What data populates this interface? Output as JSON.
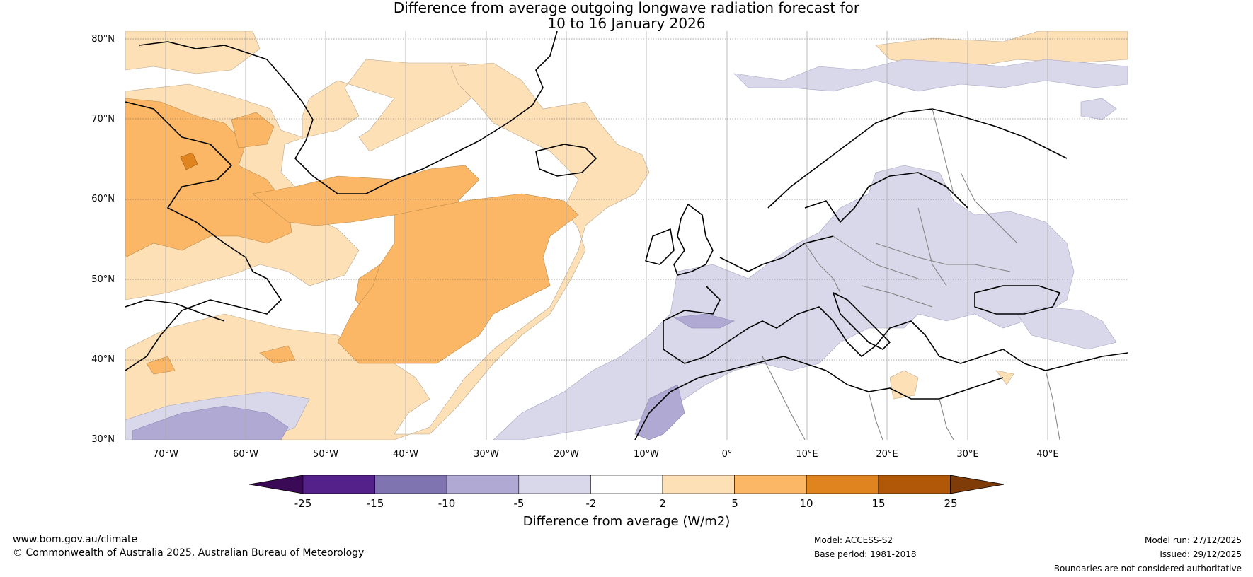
{
  "title": {
    "line1": "Difference from average outgoing longwave radiation forecast for",
    "line2": "10 to 16 January 2026"
  },
  "map": {
    "region": "North Atlantic and Europe",
    "lat_labels": [
      "80°N",
      "70°N",
      "60°N",
      "50°N",
      "40°N",
      "30°N"
    ],
    "lon_labels": [
      "70°W",
      "60°W",
      "50°W",
      "40°W",
      "30°W",
      "20°W",
      "10°W",
      "0°",
      "10°E",
      "20°E",
      "30°E",
      "40°E"
    ]
  },
  "colorbar": {
    "title": "Difference from average (W/m2)",
    "ticks": [
      "-25",
      "-15",
      "-10",
      "-5",
      "-2",
      "2",
      "5",
      "10",
      "15",
      "25"
    ],
    "colors": [
      "#3b0a57",
      "#54208a",
      "#7f73b0",
      "#b0a9d3",
      "#d9d8ea",
      "#ffffff",
      "#fde0b6",
      "#fbb766",
      "#e0841f",
      "#b05808",
      "#7f3b08"
    ]
  },
  "footer": {
    "website": "www.bom.gov.au/climate",
    "copyright": "© Commonwealth of Australia 2025, Australian Bureau of Meteorology",
    "model": "Model: ACCESS-S2",
    "base_period": "Base period: 1981-2018",
    "model_run": "Model run: 27/12/2025",
    "issued": "Issued: 29/12/2025",
    "boundaries": "Boundaries are not considered authoritative"
  },
  "colors": {
    "pos_light": "#fde0b6",
    "pos_mid": "#fbb766",
    "pos_dark": "#e0841f",
    "neg_light": "#d9d8ea",
    "neg_mid": "#b0a9d3",
    "coast": "#000000",
    "border": "#808080"
  }
}
